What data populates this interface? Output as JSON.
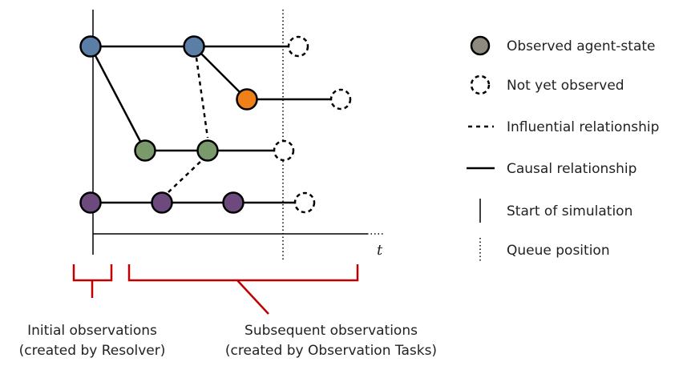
{
  "colors": {
    "blue": "#5b7ea6",
    "orange": "#f28019",
    "green": "#7a9a6c",
    "purple": "#6d4a7e",
    "grey": "#8e8a80",
    "bracket_red": "#c00000"
  },
  "axis": {
    "time_label": "t"
  },
  "legend": {
    "observed": "Observed agent-state",
    "not_observed": "Not yet observed",
    "influential": "Influential relationship",
    "causal": "Causal relationship",
    "start": "Start of simulation",
    "queue": "Queue position"
  },
  "captions": {
    "initial_line1": "Initial observations",
    "initial_line2": "(created by Resolver)",
    "subsequent_line1": "Subsequent observations",
    "subsequent_line2": "(created by Observation Tasks)"
  }
}
